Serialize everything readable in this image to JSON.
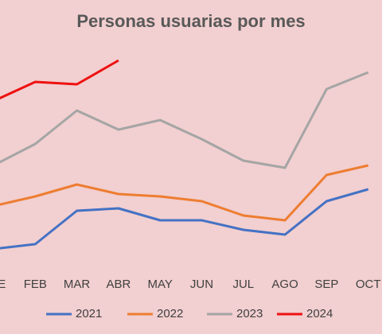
{
  "chart_data": {
    "type": "line",
    "title": "Personas usuarias por mes",
    "categories": [
      "ENE",
      "FEB",
      "MAR",
      "ABR",
      "MAY",
      "JUN",
      "JUL",
      "AGO",
      "SEP",
      "OCT"
    ],
    "series": [
      {
        "name": "2021",
        "color": "#4472c4",
        "values": [
          9,
          11,
          25,
          26,
          21,
          21,
          17,
          15,
          29,
          34
        ]
      },
      {
        "name": "2022",
        "color": "#ed7d31",
        "values": [
          27,
          31,
          36,
          32,
          31,
          29,
          23,
          21,
          40,
          44
        ]
      },
      {
        "name": "2023",
        "color": "#a5a5a5",
        "values": [
          44,
          53,
          67,
          59,
          63,
          55,
          46,
          43,
          76,
          83
        ]
      },
      {
        "name": "2024",
        "color": "#ee1111",
        "values": [
          71,
          79,
          78,
          88,
          null,
          null,
          null,
          null,
          null,
          null
        ]
      }
    ],
    "ylim": [
      0,
      100
    ],
    "legend": "bottom"
  }
}
